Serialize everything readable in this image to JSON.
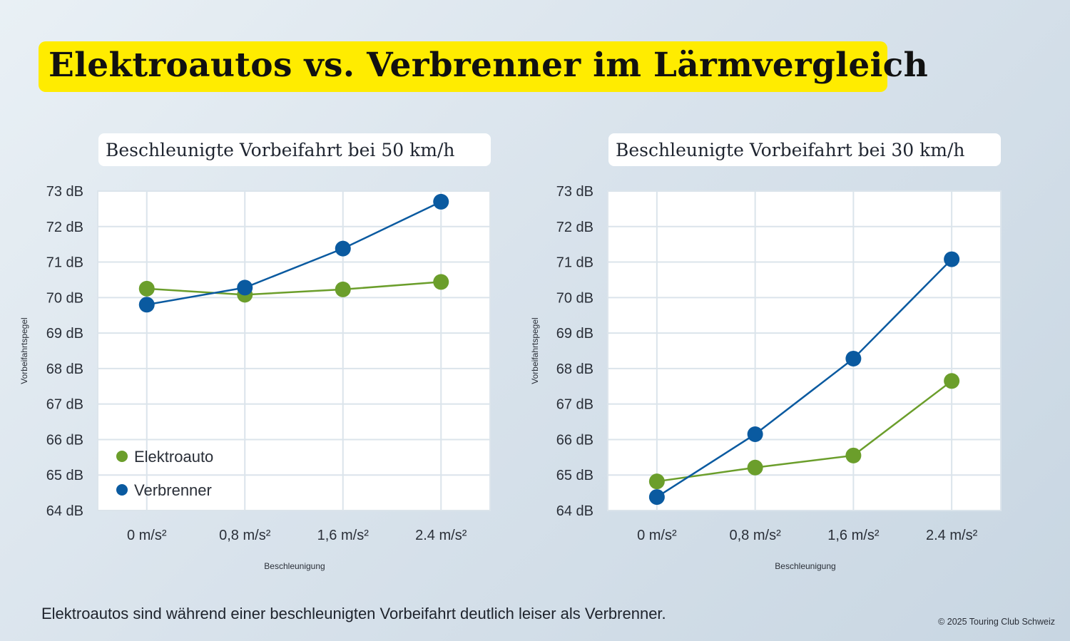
{
  "title": "Elektroautos vs. Verbrenner im Lärmvergleich",
  "footer": "Elektroautos sind während einer beschleunigten Vorbeifahrt deutlich leiser als Verbrenner.",
  "copyright": "© 2025 Touring Club Schweiz",
  "colors": {
    "elektro": "#6b9e2b",
    "verbrenner": "#0a5aa0",
    "title_bg": "#ffec00"
  },
  "chart_data": [
    {
      "type": "line",
      "title": "Beschleunigte Vorbeifahrt bei 50 km/h",
      "xlabel": "Beschleunigung",
      "ylabel": "Vorbeifahrtspegel",
      "categories": [
        "0 m/s²",
        "0,8 m/s²",
        "1,6 m/s²",
        "2.4 m/s²"
      ],
      "ylim": [
        64,
        73
      ],
      "yticks": [
        "64 dB",
        "65 dB",
        "66 dB",
        "67 dB",
        "68 dB",
        "69 dB",
        "70 dB",
        "71 dB",
        "72 dB",
        "73 dB"
      ],
      "grid": true,
      "legend_position": "bottom-left",
      "series": [
        {
          "name": "Elektroauto",
          "values": [
            70.25,
            70.08,
            70.23,
            70.44
          ]
        },
        {
          "name": "Verbrenner",
          "values": [
            69.8,
            70.28,
            71.38,
            72.7
          ]
        }
      ]
    },
    {
      "type": "line",
      "title": "Beschleunigte Vorbeifahrt bei 30 km/h",
      "xlabel": "Beschleunigung",
      "ylabel": "Vorbeifahrtspegel",
      "categories": [
        "0 m/s²",
        "0,8 m/s²",
        "1,6 m/s²",
        "2.4 m/s²"
      ],
      "ylim": [
        64,
        73
      ],
      "yticks": [
        "64 dB",
        "65 dB",
        "66 dB",
        "67 dB",
        "68 dB",
        "69 dB",
        "70 dB",
        "71 dB",
        "72 dB",
        "73 dB"
      ],
      "grid": true,
      "legend_position": "none",
      "series": [
        {
          "name": "Elektroauto",
          "values": [
            64.82,
            65.21,
            65.55,
            67.65
          ]
        },
        {
          "name": "Verbrenner",
          "values": [
            64.38,
            66.15,
            68.28,
            71.08
          ]
        }
      ]
    }
  ]
}
